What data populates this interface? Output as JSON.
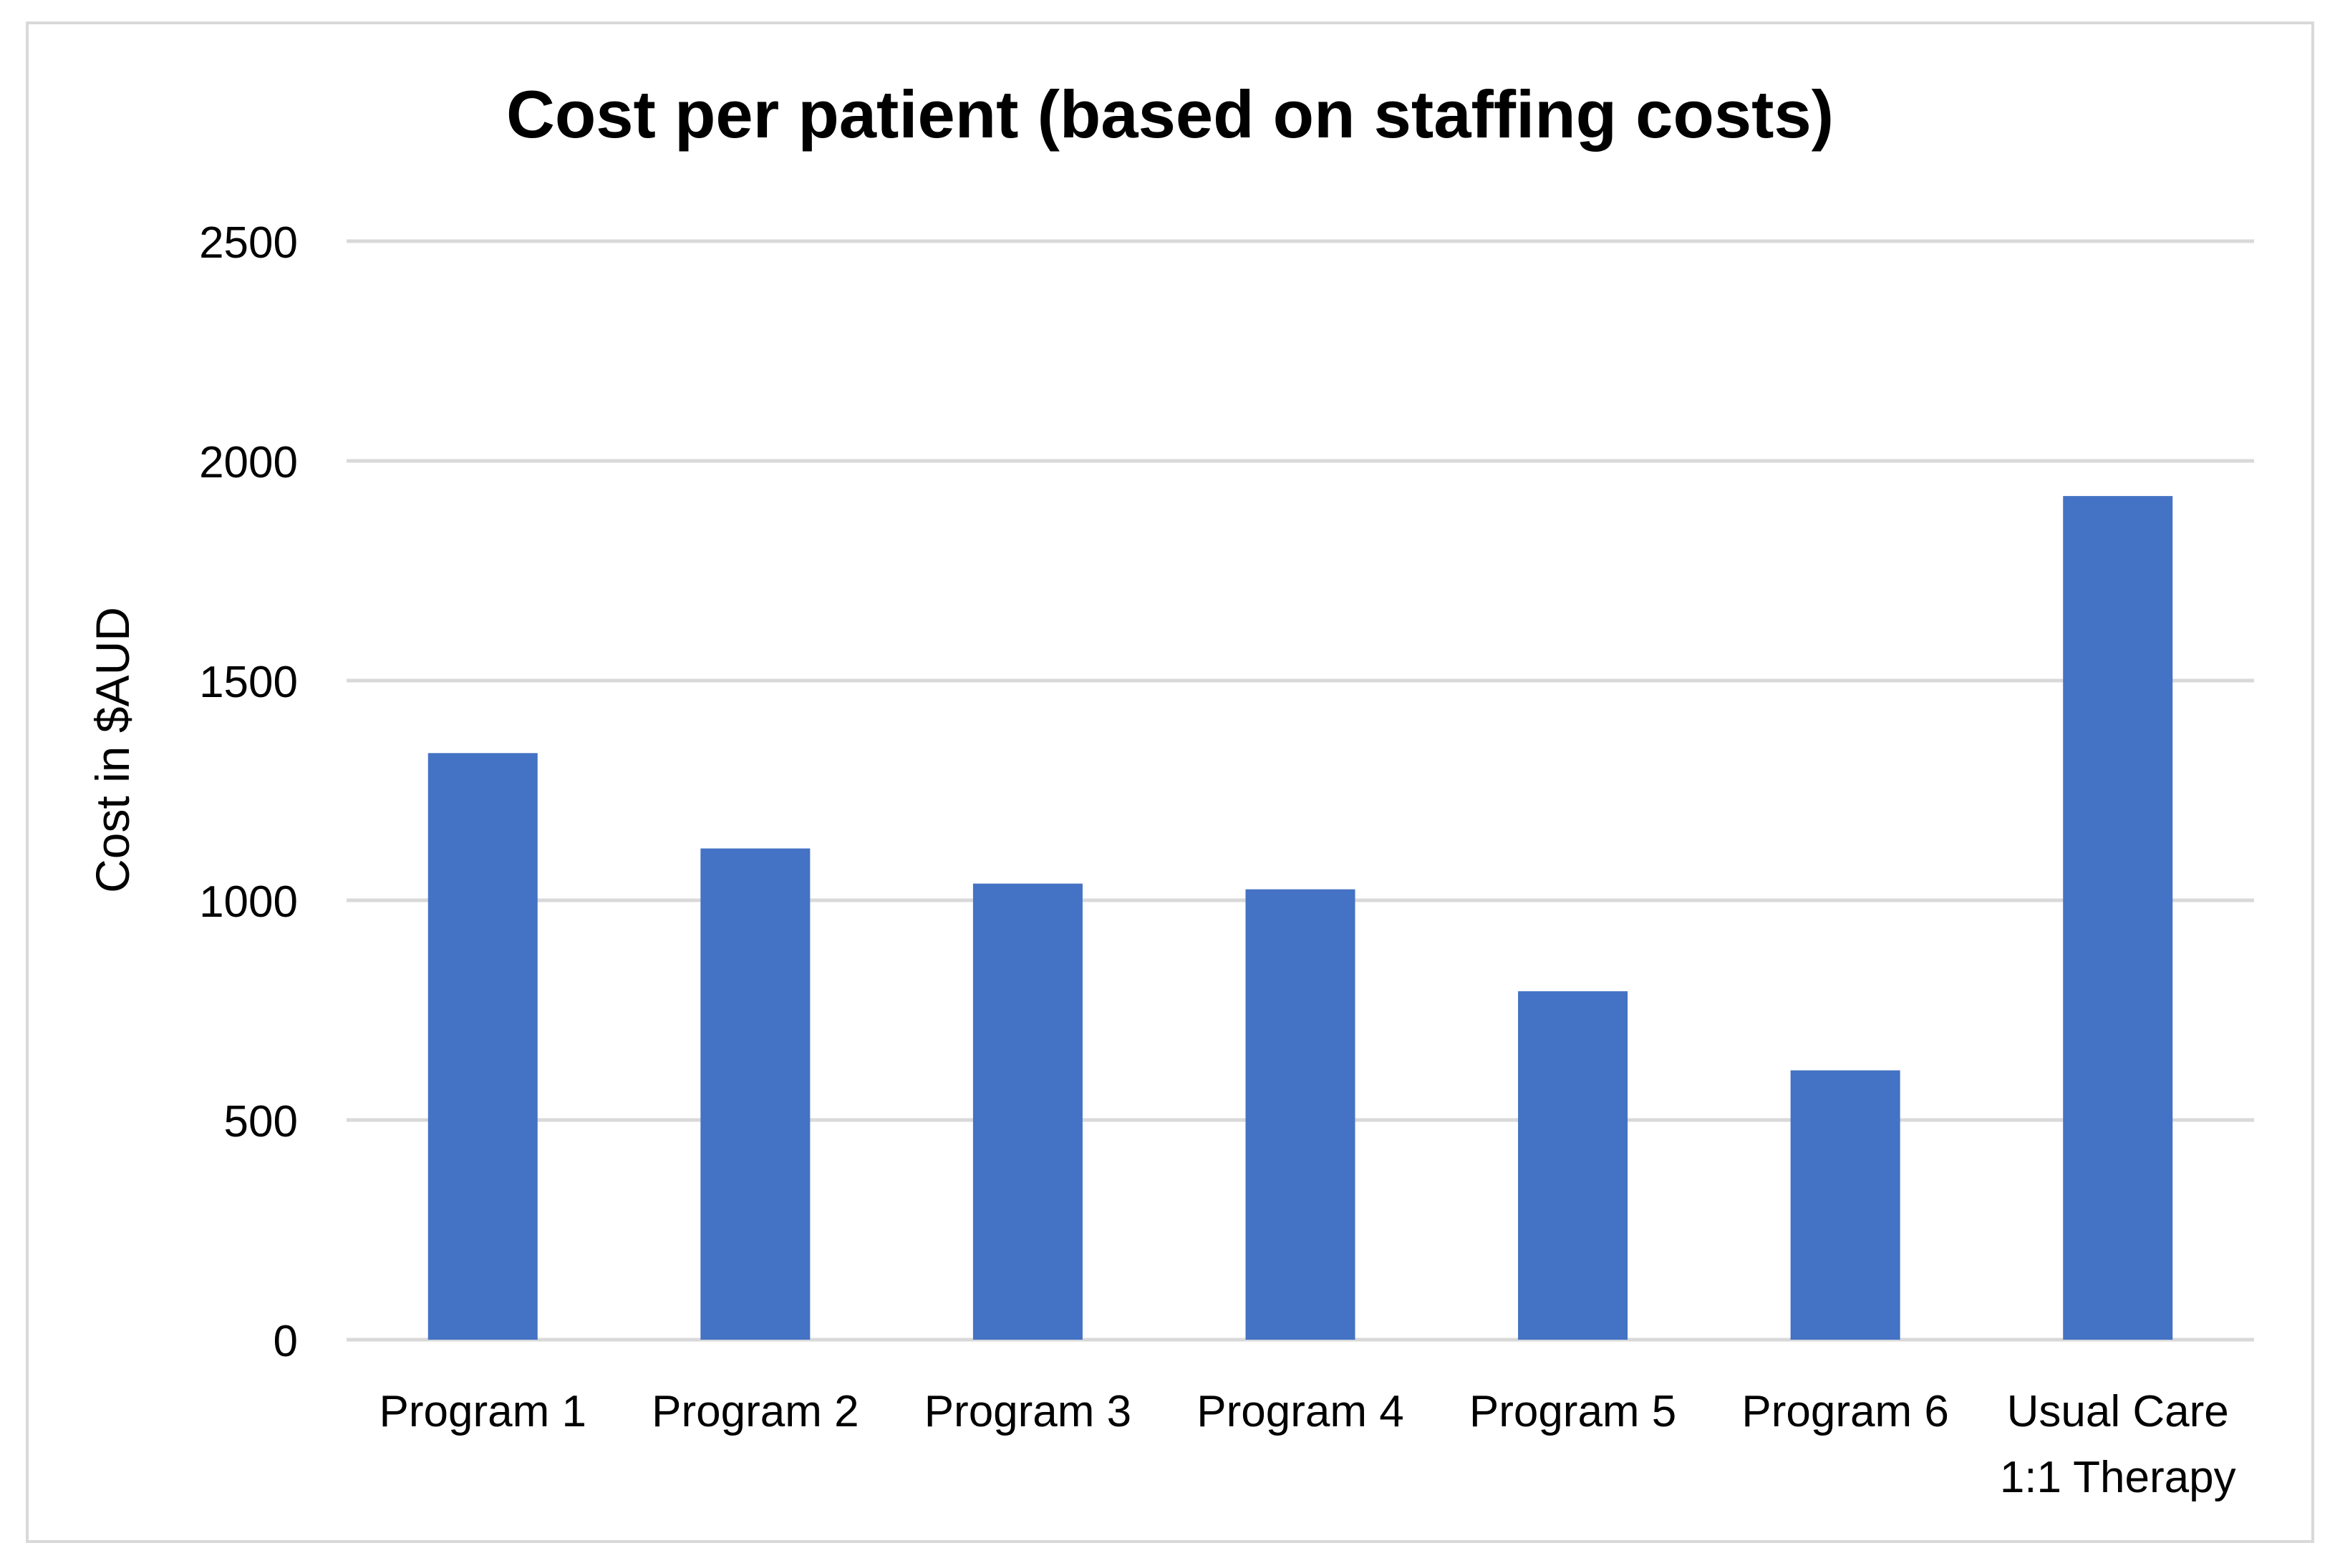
{
  "chart_data": {
    "type": "bar",
    "title": "Cost per patient (based on staffing costs)",
    "xlabel": "",
    "ylabel": "Cost in $AUD",
    "ylim": [
      0,
      2500
    ],
    "yticks": [
      0,
      500,
      1000,
      1500,
      2000,
      2500
    ],
    "ytick_labels": [
      "0",
      "500",
      "1000",
      "1500",
      "2000",
      "2500"
    ],
    "grid": true,
    "legend": "none",
    "categories": [
      [
        "Program 1"
      ],
      [
        "Program 2"
      ],
      [
        "Program 3"
      ],
      [
        "Program 4"
      ],
      [
        "Program 5"
      ],
      [
        "Program 6"
      ],
      [
        "Usual Care",
        "1:1 Therapy"
      ]
    ],
    "series": [
      {
        "name": "Cost per patient",
        "color": "#4472C4",
        "values": [
          1335,
          1118,
          1038,
          1025,
          793,
          613,
          1920
        ]
      }
    ]
  }
}
